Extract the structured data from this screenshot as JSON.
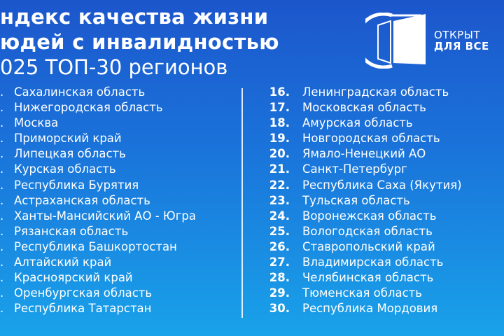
{
  "title": {
    "line1": "ндекс качества жизни",
    "line2": "юдей с инвалидностью",
    "line3": "025 ТОП-30 регионов"
  },
  "logo": {
    "line1": "ОТКРЫТ",
    "line2": "ДЛЯ ВСЕ"
  },
  "colors": {
    "background_top": "#1c56cc",
    "background_bottom": "#19a2ea",
    "text": "#ffffff"
  },
  "left_list": [
    {
      "num": ".",
      "name": "Сахалинская область"
    },
    {
      "num": ".",
      "name": "Нижегородская область"
    },
    {
      "num": ".",
      "name": "Москва"
    },
    {
      "num": ".",
      "name": "Приморский край"
    },
    {
      "num": ".",
      "name": "Липецкая область"
    },
    {
      "num": ".",
      "name": "Курская область"
    },
    {
      "num": ".",
      "name": "Республика Бурятия"
    },
    {
      "num": ".",
      "name": "Астраханская область"
    },
    {
      "num": ".",
      "name": "Ханты-Мансийский АО - Югра"
    },
    {
      "num": ".",
      "name": "Рязанская область"
    },
    {
      "num": ".",
      "name": "Республика Башкортостан"
    },
    {
      "num": ".",
      "name": "Алтайский край"
    },
    {
      "num": ".",
      "name": "Красноярский край"
    },
    {
      "num": ".",
      "name": "Оренбургская область"
    },
    {
      "num": ".",
      "name": "Республика Татарстан"
    }
  ],
  "right_list": [
    {
      "num": "16.",
      "name": "Ленинградская область"
    },
    {
      "num": "17.",
      "name": "Московская область"
    },
    {
      "num": "18.",
      "name": "Амурская область"
    },
    {
      "num": "19.",
      "name": "Новгородская область"
    },
    {
      "num": "20.",
      "name": "Ямало-Ненецкий АО"
    },
    {
      "num": "21.",
      "name": "Санкт-Петербург"
    },
    {
      "num": "22.",
      "name": "Республика Саха (Якутия)"
    },
    {
      "num": "23.",
      "name": "Тульская область"
    },
    {
      "num": "24.",
      "name": "Воронежская область"
    },
    {
      "num": "25.",
      "name": "Вологодская область"
    },
    {
      "num": "26.",
      "name": "Ставропольский край"
    },
    {
      "num": "27.",
      "name": "Владимирская область"
    },
    {
      "num": "28.",
      "name": "Челябинская область"
    },
    {
      "num": "29.",
      "name": "Тюменская область"
    },
    {
      "num": "30.",
      "name": "Республика Мордовия"
    }
  ]
}
